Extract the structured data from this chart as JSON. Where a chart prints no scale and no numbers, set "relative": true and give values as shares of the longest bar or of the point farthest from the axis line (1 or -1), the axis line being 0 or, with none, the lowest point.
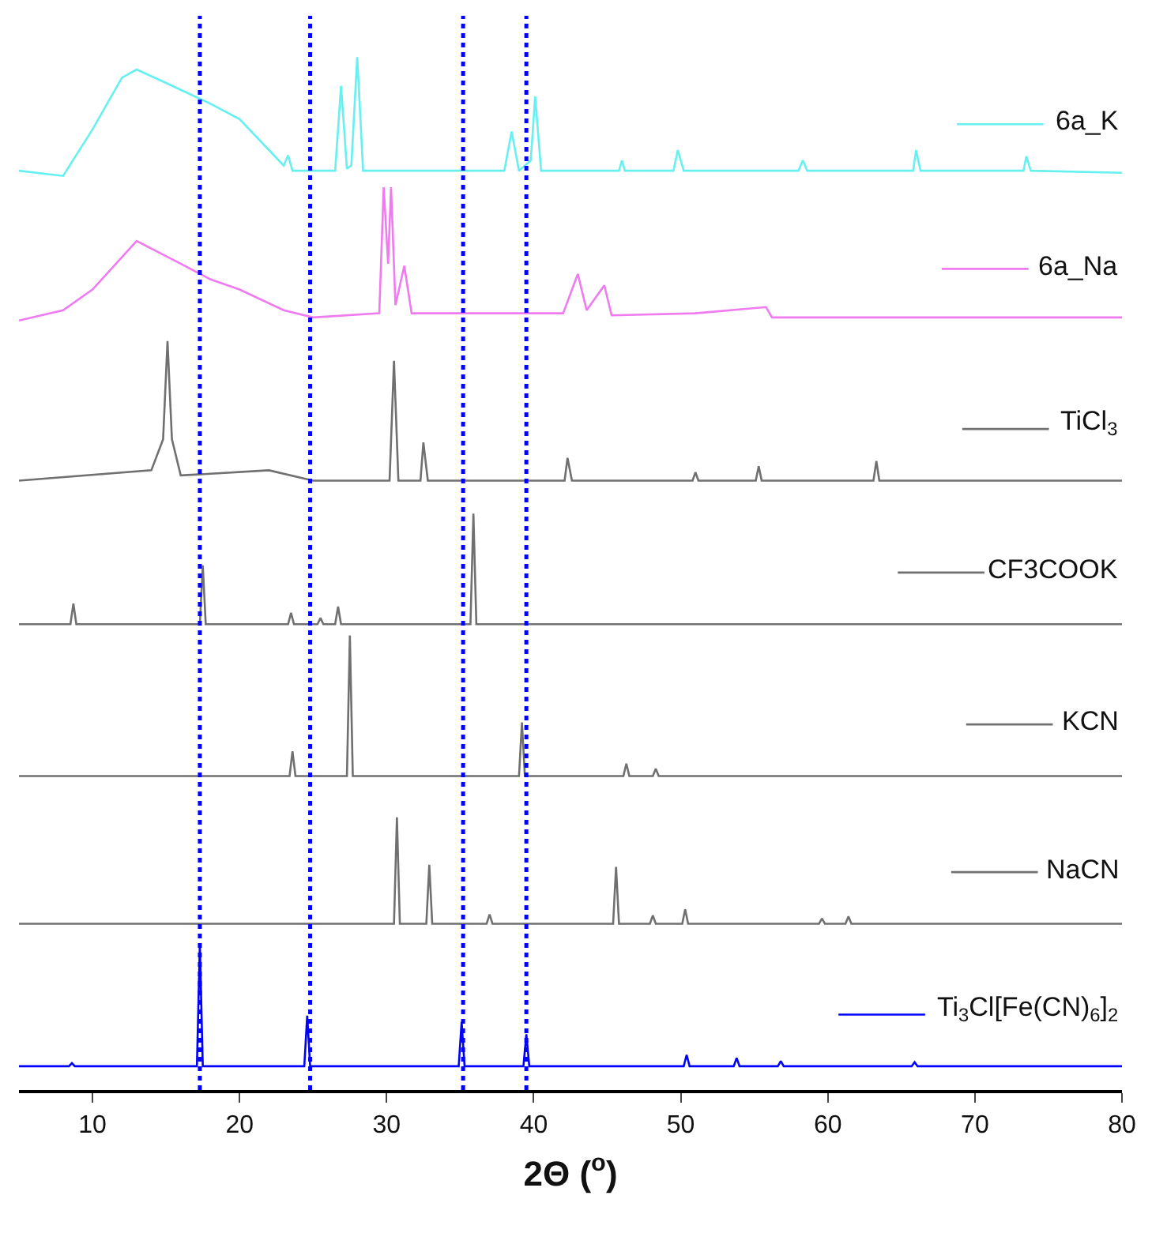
{
  "chart_data": {
    "type": "line",
    "relative": true,
    "xlabel": "2Θ ($^{o}$)",
    "xlim": [
      5,
      80
    ],
    "xticks": [
      10,
      20,
      30,
      40,
      50,
      60,
      70,
      80
    ],
    "legend": "right",
    "marker": "none",
    "line_style": "solid",
    "ref_lines": [
      {
        "axis": "x",
        "value": 17.3,
        "color": "#0000ff",
        "line_style": "dotted"
      },
      {
        "axis": "x",
        "value": 24.8,
        "color": "#0000ff",
        "line_style": "dotted"
      },
      {
        "axis": "x",
        "value": 35.2,
        "color": "#0000ff",
        "line_style": "dotted"
      },
      {
        "axis": "x",
        "value": 39.5,
        "color": "#0000ff",
        "line_style": "dotted"
      }
    ],
    "series": [
      {
        "name": "6a_K",
        "color": "#66f0f0",
        "x": [
          5,
          8,
          10,
          12,
          13,
          15,
          18,
          20,
          22,
          23,
          23.3,
          23.6,
          26.5,
          26.9,
          27.3,
          27.6,
          28,
          28.4,
          38,
          38.5,
          39,
          39.8,
          40.1,
          40.5,
          45.8,
          46,
          46.2,
          49.5,
          49.8,
          50.2,
          58,
          58.3,
          58.6,
          65.8,
          66,
          66.3,
          73.3,
          73.5,
          73.8,
          80
        ],
        "values": [
          0.89,
          0.885,
          0.93,
          0.98,
          0.988,
          0.975,
          0.955,
          0.94,
          0.91,
          0.895,
          0.905,
          0.89,
          0.89,
          0.972,
          0.892,
          0.895,
          1.0,
          0.89,
          0.89,
          0.928,
          0.89,
          0.9,
          0.962,
          0.89,
          0.89,
          0.9,
          0.89,
          0.89,
          0.91,
          0.89,
          0.89,
          0.9,
          0.89,
          0.89,
          0.91,
          0.89,
          0.89,
          0.904,
          0.89,
          0.888
        ]
      },
      {
        "name": "6a_Na",
        "color": "#f07af0",
        "x": [
          5,
          8,
          10,
          13,
          16,
          18,
          20,
          23,
          25,
          29.5,
          29.8,
          30.1,
          30.3,
          30.6,
          31.2,
          31.7,
          42,
          43,
          43.6,
          44.8,
          45.3,
          51,
          55.8,
          56.2,
          80
        ],
        "values": [
          0.745,
          0.755,
          0.775,
          0.822,
          0.8,
          0.785,
          0.775,
          0.755,
          0.748,
          0.752,
          0.874,
          0.8,
          0.874,
          0.76,
          0.798,
          0.752,
          0.752,
          0.79,
          0.755,
          0.779,
          0.75,
          0.752,
          0.758,
          0.748,
          0.748
        ]
      },
      {
        "name": "TiCl$_{3}$",
        "color": "#707070",
        "x": [
          5,
          14,
          14.8,
          15.1,
          15.4,
          16,
          22,
          25,
          30.2,
          30.5,
          30.8,
          32.3,
          32.5,
          32.8,
          42.1,
          42.3,
          42.6,
          50.8,
          51,
          51.2,
          55.1,
          55.3,
          55.5,
          63.1,
          63.3,
          63.5,
          80
        ],
        "values": [
          0.59,
          0.6,
          0.63,
          0.725,
          0.63,
          0.595,
          0.6,
          0.59,
          0.59,
          0.706,
          0.59,
          0.59,
          0.627,
          0.59,
          0.59,
          0.612,
          0.59,
          0.59,
          0.598,
          0.59,
          0.59,
          0.604,
          0.59,
          0.59,
          0.609,
          0.59,
          0.59
        ]
      },
      {
        "name": "CF3COOK",
        "color": "#707070",
        "x": [
          5,
          8.5,
          8.7,
          8.9,
          17.3,
          17.5,
          17.7,
          23.3,
          23.5,
          23.7,
          25.3,
          25.5,
          25.7,
          26.5,
          26.7,
          26.9,
          35.7,
          35.9,
          36.1,
          80
        ],
        "values": [
          0.451,
          0.451,
          0.471,
          0.451,
          0.451,
          0.508,
          0.451,
          0.451,
          0.462,
          0.451,
          0.451,
          0.457,
          0.451,
          0.451,
          0.468,
          0.451,
          0.451,
          0.558,
          0.451,
          0.451
        ]
      },
      {
        "name": "KCN",
        "color": "#707070",
        "x": [
          5,
          23.4,
          23.6,
          23.8,
          27.3,
          27.5,
          27.7,
          39.0,
          39.2,
          39.4,
          46.1,
          46.3,
          46.5,
          48.1,
          48.3,
          48.5,
          80
        ],
        "values": [
          0.304,
          0.304,
          0.328,
          0.304,
          0.304,
          0.44,
          0.304,
          0.304,
          0.356,
          0.304,
          0.304,
          0.316,
          0.304,
          0.304,
          0.311,
          0.304,
          0.304
        ]
      },
      {
        "name": "NaCN",
        "color": "#707070",
        "x": [
          5,
          30.5,
          30.7,
          30.9,
          32.7,
          32.9,
          33.1,
          36.8,
          37,
          37.2,
          45.4,
          45.6,
          45.8,
          47.9,
          48.1,
          48.3,
          50.1,
          50.3,
          50.5,
          59.4,
          59.6,
          59.8,
          61.2,
          61.4,
          61.6,
          80
        ],
        "values": [
          0.161,
          0.161,
          0.264,
          0.161,
          0.161,
          0.218,
          0.161,
          0.161,
          0.17,
          0.161,
          0.161,
          0.216,
          0.161,
          0.161,
          0.169,
          0.161,
          0.161,
          0.175,
          0.161,
          0.161,
          0.166,
          0.161,
          0.161,
          0.168,
          0.161,
          0.161
        ]
      },
      {
        "name": "Ti$_{3}$Cl[Fe(CN)$_{6}$]$_{2}$",
        "color": "#0000ff",
        "x": [
          5,
          8.4,
          8.6,
          8.8,
          17.1,
          17.3,
          17.5,
          24.4,
          24.6,
          24.8,
          34.9,
          35.1,
          35.3,
          39.3,
          39.5,
          39.7,
          50.2,
          50.4,
          50.6,
          53.6,
          53.8,
          54,
          56.6,
          56.8,
          57,
          65.7,
          65.9,
          66.1,
          80
        ],
        "values": [
          0.023,
          0.023,
          0.026,
          0.023,
          0.023,
          0.141,
          0.023,
          0.023,
          0.072,
          0.023,
          0.023,
          0.066,
          0.023,
          0.023,
          0.054,
          0.023,
          0.023,
          0.034,
          0.023,
          0.023,
          0.031,
          0.023,
          0.023,
          0.028,
          0.023,
          0.023,
          0.027,
          0.023,
          0.023
        ]
      }
    ]
  }
}
